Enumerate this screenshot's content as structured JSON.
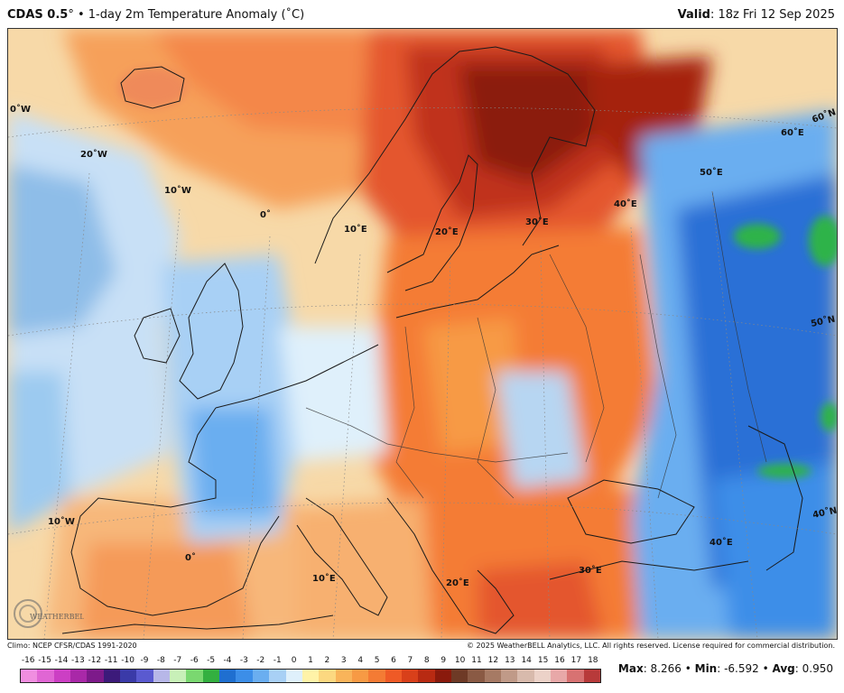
{
  "header": {
    "model": "CDAS 0.5",
    "degree_mark": "°",
    "separator": "•",
    "product": "1-day 2m Temperature Anomaly (˚C)",
    "valid_label": "Valid",
    "valid_value": ": 18z Fri 12 Sep 2025"
  },
  "map": {
    "region": "Europe",
    "grid_labels": {
      "lon_0W_top": "0˚W",
      "lon_20W": "20˚W",
      "lon_10W": "10˚W",
      "lon_0": "0˚",
      "lon_10E_north": "10˚E",
      "lon_20E_north": "20˚E",
      "lon_30E_north": "30˚E",
      "lon_40E_north": "40˚E",
      "lon_50E": "50˚E",
      "lon_60E": "60˚E",
      "lat_60N": "60˚N",
      "lat_50N": "50˚N",
      "lat_40N": "40˚N",
      "lon_10W_south": "10˚W",
      "lon_0_south": "0˚",
      "lon_10E_south": "10˚E",
      "lon_20E_south": "20˚E",
      "lon_30E_south": "30˚E",
      "lon_40E_south": "40˚E"
    },
    "colors": {
      "strong_warm": "#8b1a0e",
      "warm": "#e4572e",
      "mild_warm": "#f6a05a",
      "near_zero": "#f7ecd0",
      "cool": "#9ccaf0",
      "strong_cool": "#2a6fd6",
      "very_cool": "#2fb34a"
    },
    "logo_text": "WEATHERBELL"
  },
  "footer": {
    "climo": "Climo: NCEP CFSR/CDAS 1991-2020",
    "copyright": "© 2025 WeatherBELL Analytics, LLC. All rights reserved. License required for commercial distribution."
  },
  "colorbar": {
    "labels": [
      "-16",
      "-15",
      "-14",
      "-13",
      "-12",
      "-11",
      "-10",
      "-9",
      "-8",
      "-7",
      "-6",
      "-5",
      "-4",
      "-3",
      "-2",
      "-1",
      "0",
      "1",
      "2",
      "3",
      "4",
      "5",
      "6",
      "7",
      "8",
      "9",
      "10",
      "11",
      "12",
      "13",
      "14",
      "15",
      "16",
      "17",
      "18"
    ],
    "colors": [
      "#f08ee0",
      "#e066d4",
      "#cc3fc4",
      "#a928a8",
      "#7d1a8a",
      "#3c1a7a",
      "#3a3aa8",
      "#5a5ad0",
      "#b7b7e8",
      "#c8f0b8",
      "#7ad870",
      "#33b040",
      "#1f6fd0",
      "#3c8ee8",
      "#6aaef0",
      "#a8d0f5",
      "#dff0fb",
      "#fff3a8",
      "#fcd880",
      "#f9b45a",
      "#f79a44",
      "#f47b34",
      "#ef5a26",
      "#d9401a",
      "#b82a12",
      "#8a1a0c",
      "#6e3a26",
      "#8a5a44",
      "#a67a64",
      "#c09a88",
      "#d8baac",
      "#ecd2c8",
      "#e8a8a8",
      "#d87272",
      "#b83a3a"
    ]
  },
  "stats": {
    "max_label": "Max",
    "max_value": ": 8.266 •",
    "min_label": "Min",
    "min_value": ": -6.592 •",
    "avg_label": "Avg",
    "avg_value": ": 0.950"
  }
}
